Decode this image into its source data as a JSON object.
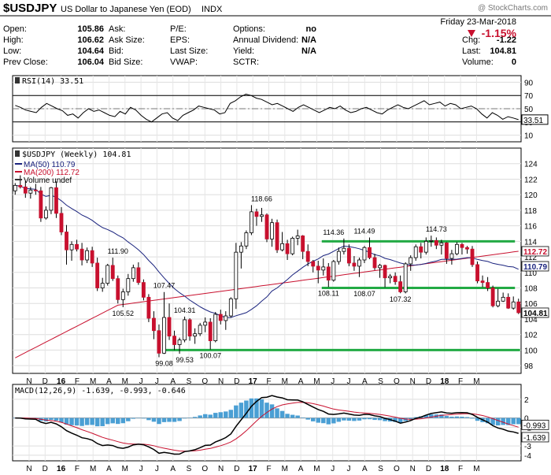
{
  "header": {
    "symbol": "$USDJPY",
    "description": "US Dollar to Japanese Yen (EOD)",
    "exchange": "INDX",
    "watermark": "@ StockCharts.com",
    "date": "Friday 23-Mar-2018",
    "change_pct": "-1.15%",
    "stats_left": [
      {
        "label": "Open:",
        "value": "105.86"
      },
      {
        "label": "High:",
        "value": "106.62"
      },
      {
        "label": "Low:",
        "value": "104.64"
      },
      {
        "label": "Prev Close:",
        "value": "106.04"
      }
    ],
    "stats_mid1": [
      "Ask:",
      "Ask Size:",
      "Bid:",
      "Bid Size:"
    ],
    "stats_mid2": [
      "P/E:",
      "EPS:",
      "Last Size:",
      "VWAP:"
    ],
    "stats_mid3": [
      {
        "label": "Options:",
        "value": "no"
      },
      {
        "label": "Annual Dividend:",
        "value": "N/A"
      },
      {
        "label": "Yield:",
        "value": "N/A"
      },
      {
        "label": "SCTR:",
        "value": ""
      }
    ],
    "stats_right": [
      {
        "label": "Chg:",
        "value": "-1.22"
      },
      {
        "label": "Last:",
        "value": "104.81"
      },
      {
        "label": "Volume:",
        "value": "0"
      }
    ]
  },
  "colors": {
    "up": "#e8e8e8",
    "down": "#c8102e",
    "ma50": "#1a237e",
    "ma200": "#c8102e",
    "support": "#22aa44",
    "histogram": "#4a9fd4"
  },
  "chart_data": [
    {
      "type": "line",
      "name": "rsi",
      "title": "RSI(14) 33.51",
      "last_value": "33.51",
      "ylim": [
        0,
        100
      ],
      "yticks": [
        90,
        70,
        50,
        30,
        10
      ],
      "levels": [
        70,
        30
      ],
      "values": [
        55,
        52,
        48,
        46,
        44,
        52,
        58,
        54,
        50,
        47,
        40,
        42,
        36,
        44,
        50,
        46,
        48,
        44,
        40,
        38,
        46,
        42,
        52,
        48,
        40,
        34,
        30,
        36,
        42,
        44,
        36,
        32,
        40,
        44,
        48,
        54,
        52,
        50,
        48,
        42,
        44,
        58,
        62,
        68,
        72,
        70,
        66,
        64,
        60,
        56,
        58,
        54,
        50,
        46,
        52,
        56,
        52,
        48,
        44,
        48,
        52,
        50,
        54,
        48,
        44,
        46,
        50,
        52,
        48,
        44,
        42,
        48,
        52,
        56,
        52,
        50,
        54,
        58,
        62,
        56,
        58,
        60,
        54,
        58,
        56,
        50,
        52,
        54,
        50,
        42,
        36,
        44,
        40,
        34,
        38,
        36,
        33.51
      ]
    },
    {
      "type": "candlestick",
      "name": "price",
      "title": "$USDJPY (Weekly) 104.81",
      "ylim": [
        97,
        126
      ],
      "yticks": [
        98,
        100,
        102,
        104,
        106,
        108,
        110,
        112,
        114,
        116,
        118,
        120,
        122,
        124
      ],
      "last": "104.81",
      "legend": [
        {
          "label": "MA(50) 110.79"
        },
        {
          "label": "MA(200) 112.72"
        },
        {
          "label": "Volume undef"
        }
      ],
      "ma50_value": "110.79",
      "ma200_value": "112.72",
      "x_labels": [
        "N",
        "D",
        "16",
        "F",
        "M",
        "A",
        "M",
        "J",
        "J",
        "A",
        "S",
        "O",
        "N",
        "D",
        "17",
        "F",
        "M",
        "A",
        "M",
        "J",
        "J",
        "A",
        "S",
        "O",
        "N",
        "D",
        "18",
        "F",
        "M"
      ],
      "annotations": [
        {
          "text": "111.90",
          "i": 20,
          "v": 111.9
        },
        {
          "text": "105.52",
          "i": 21,
          "v": 105.52
        },
        {
          "text": "107.47",
          "i": 29,
          "v": 107.47
        },
        {
          "text": "104.31",
          "i": 33,
          "v": 104.31
        },
        {
          "text": "99.08",
          "i": 29,
          "v": 99.08
        },
        {
          "text": "99.53",
          "i": 33,
          "v": 99.53
        },
        {
          "text": "100.07",
          "i": 38,
          "v": 100.07
        },
        {
          "text": "118.66",
          "i": 48,
          "v": 118.66
        },
        {
          "text": "114.36",
          "i": 62,
          "v": 114.36
        },
        {
          "text": "114.49",
          "i": 68,
          "v": 114.49
        },
        {
          "text": "108.11",
          "i": 61,
          "v": 108.11
        },
        {
          "text": "108.07",
          "i": 68,
          "v": 108.07
        },
        {
          "text": "107.32",
          "i": 75,
          "v": 107.32
        },
        {
          "text": "114.73",
          "i": 82,
          "v": 114.73
        }
      ],
      "support_lines": [
        {
          "value": 114.0,
          "from": 60,
          "to": 97
        },
        {
          "value": 108.0,
          "from": 60,
          "to": 97
        },
        {
          "value": 100.0,
          "from": 29,
          "to": 101
        }
      ],
      "candles": [
        [
          120.5,
          121.5,
          120.0,
          121.2
        ],
        [
          121.2,
          122.5,
          120.8,
          121.0
        ],
        [
          121.0,
          121.8,
          119.6,
          120.2
        ],
        [
          120.2,
          121.0,
          119.5,
          120.6
        ],
        [
          120.6,
          121.4,
          120.0,
          120.5
        ],
        [
          120.5,
          121.0,
          116.5,
          117.0
        ],
        [
          117.0,
          118.5,
          116.8,
          118.0
        ],
        [
          118.0,
          121.0,
          117.5,
          120.9
        ],
        [
          120.9,
          121.7,
          117.0,
          117.6
        ],
        [
          117.6,
          118.4,
          114.8,
          115.2
        ],
        [
          115.2,
          116.1,
          111.0,
          112.9
        ],
        [
          112.9,
          114.0,
          111.5,
          113.6
        ],
        [
          113.6,
          114.2,
          112.7,
          113.0
        ],
        [
          113.0,
          113.8,
          110.9,
          111.6
        ],
        [
          111.6,
          113.2,
          111.2,
          112.8
        ],
        [
          112.8,
          113.3,
          110.7,
          111.2
        ],
        [
          111.2,
          111.9,
          107.6,
          108.0
        ],
        [
          108.0,
          109.3,
          107.5,
          108.6
        ],
        [
          108.6,
          111.1,
          108.3,
          110.9
        ],
        [
          110.9,
          111.9,
          108.9,
          109.2
        ],
        [
          109.2,
          109.6,
          106.0,
          106.5
        ],
        [
          106.5,
          107.9,
          105.52,
          107.5
        ],
        [
          107.5,
          109.8,
          107.0,
          109.2
        ],
        [
          109.2,
          111.0,
          108.8,
          110.6
        ],
        [
          110.6,
          111.3,
          108.4,
          108.7
        ],
        [
          108.7,
          109.1,
          106.4,
          106.8
        ],
        [
          106.8,
          107.2,
          103.6,
          104.1
        ],
        [
          104.1,
          105.0,
          101.4,
          102.5
        ],
        [
          102.5,
          103.3,
          99.08,
          99.6
        ],
        [
          99.6,
          107.47,
          99.5,
          104.2
        ],
        [
          104.2,
          106.0,
          101.3,
          101.8
        ],
        [
          101.8,
          102.5,
          100.0,
          100.7
        ],
        [
          100.7,
          101.6,
          99.53,
          101.3
        ],
        [
          101.3,
          104.31,
          101.0,
          103.9
        ],
        [
          103.9,
          104.1,
          101.2,
          101.8
        ],
        [
          101.8,
          102.8,
          100.8,
          102.1
        ],
        [
          102.1,
          103.5,
          101.8,
          103.2
        ],
        [
          103.2,
          104.2,
          102.3,
          103.6
        ],
        [
          103.6,
          104.1,
          100.07,
          101.2
        ],
        [
          101.2,
          104.9,
          101.0,
          104.6
        ],
        [
          104.6,
          105.2,
          103.3,
          103.8
        ],
        [
          103.8,
          105.0,
          102.6,
          104.4
        ],
        [
          104.4,
          106.8,
          104.2,
          106.6
        ],
        [
          106.6,
          113.8,
          105.3,
          112.6
        ],
        [
          112.6,
          113.9,
          110.5,
          113.4
        ],
        [
          113.4,
          115.4,
          113.0,
          115.1
        ],
        [
          115.1,
          118.66,
          114.8,
          117.8
        ],
        [
          117.8,
          118.2,
          116.0,
          117.2
        ],
        [
          117.2,
          118.3,
          116.5,
          117.4
        ],
        [
          117.4,
          117.6,
          113.9,
          114.3
        ],
        [
          114.3,
          116.9,
          113.3,
          116.4
        ],
        [
          116.4,
          116.8,
          112.5,
          112.9
        ],
        [
          112.9,
          115.2,
          112.7,
          113.7
        ],
        [
          113.7,
          114.2,
          111.6,
          112.4
        ],
        [
          112.4,
          114.6,
          112.2,
          114.4
        ],
        [
          114.4,
          115.5,
          113.5,
          114.7
        ],
        [
          114.7,
          114.8,
          111.7,
          112.7
        ],
        [
          112.7,
          113.6,
          110.8,
          111.4
        ],
        [
          111.4,
          111.6,
          110.0,
          110.8
        ],
        [
          110.8,
          111.5,
          108.6,
          110.3
        ],
        [
          110.3,
          111.8,
          109.6,
          110.7
        ],
        [
          110.7,
          111.2,
          108.11,
          109.0
        ],
        [
          109.0,
          111.6,
          108.8,
          111.4
        ],
        [
          111.4,
          113.2,
          111.0,
          112.7
        ],
        [
          112.7,
          114.36,
          112.3,
          113.1
        ],
        [
          113.1,
          113.6,
          110.8,
          111.2
        ],
        [
          111.2,
          112.1,
          110.2,
          110.8
        ],
        [
          110.8,
          111.9,
          109.4,
          111.6
        ],
        [
          111.6,
          113.4,
          111.2,
          113.2
        ],
        [
          113.2,
          114.49,
          111.7,
          111.9
        ],
        [
          111.9,
          112.4,
          110.3,
          110.6
        ],
        [
          110.6,
          111.1,
          109.3,
          110.9
        ],
        [
          110.9,
          111.0,
          108.07,
          109.3
        ],
        [
          109.3,
          109.8,
          108.6,
          109.5
        ],
        [
          109.5,
          110.0,
          108.4,
          108.8
        ],
        [
          108.8,
          109.6,
          107.32,
          107.5
        ],
        [
          107.5,
          111.3,
          107.3,
          111.1
        ],
        [
          111.1,
          112.2,
          110.2,
          111.9
        ],
        [
          111.9,
          113.6,
          111.5,
          113.3
        ],
        [
          113.3,
          113.8,
          111.8,
          112.6
        ],
        [
          112.6,
          114.5,
          112.3,
          114.0
        ],
        [
          114.0,
          114.73,
          113.3,
          114.1
        ],
        [
          114.1,
          114.5,
          113.0,
          113.5
        ],
        [
          113.5,
          114.2,
          112.3,
          113.8
        ],
        [
          113.8,
          113.9,
          111.1,
          111.8
        ],
        [
          111.8,
          112.9,
          111.0,
          112.4
        ],
        [
          112.4,
          113.9,
          112.2,
          113.6
        ],
        [
          113.6,
          113.8,
          112.3,
          113.2
        ],
        [
          113.2,
          113.4,
          112.4,
          113.0
        ],
        [
          113.0,
          113.4,
          110.7,
          111.0
        ],
        [
          111.0,
          111.4,
          108.6,
          108.9
        ],
        [
          108.9,
          109.6,
          108.1,
          108.7
        ],
        [
          108.7,
          109.4,
          107.6,
          108.0
        ],
        [
          108.0,
          108.3,
          105.5,
          105.7
        ],
        [
          105.7,
          107.9,
          105.5,
          106.3
        ],
        [
          106.3,
          107.4,
          106.2,
          106.8
        ],
        [
          106.8,
          107.3,
          105.3,
          105.4
        ],
        [
          105.4,
          106.9,
          105.2,
          106.2
        ],
        [
          106.2,
          106.62,
          104.64,
          104.81
        ]
      ]
    },
    {
      "type": "line",
      "name": "macd",
      "title": "MACD(12,26,9) -1.639, -0.993, -0.646",
      "ylim": [
        -4.6,
        3.6
      ],
      "yticks": [
        2,
        0,
        -1,
        -3,
        -4
      ],
      "values_label": {
        "macd": "-1.639",
        "signal": "-0.993",
        "hist": "-0.646"
      },
      "value_tags": [
        "-0.993",
        "-1.639"
      ],
      "x_labels": [
        "N",
        "D",
        "16",
        "F",
        "M",
        "A",
        "M",
        "J",
        "J",
        "A",
        "S",
        "O",
        "N",
        "D",
        "17",
        "F",
        "M",
        "A",
        "M",
        "J",
        "J",
        "A",
        "S",
        "O",
        "N",
        "D",
        "18",
        "F",
        "M"
      ]
    }
  ]
}
